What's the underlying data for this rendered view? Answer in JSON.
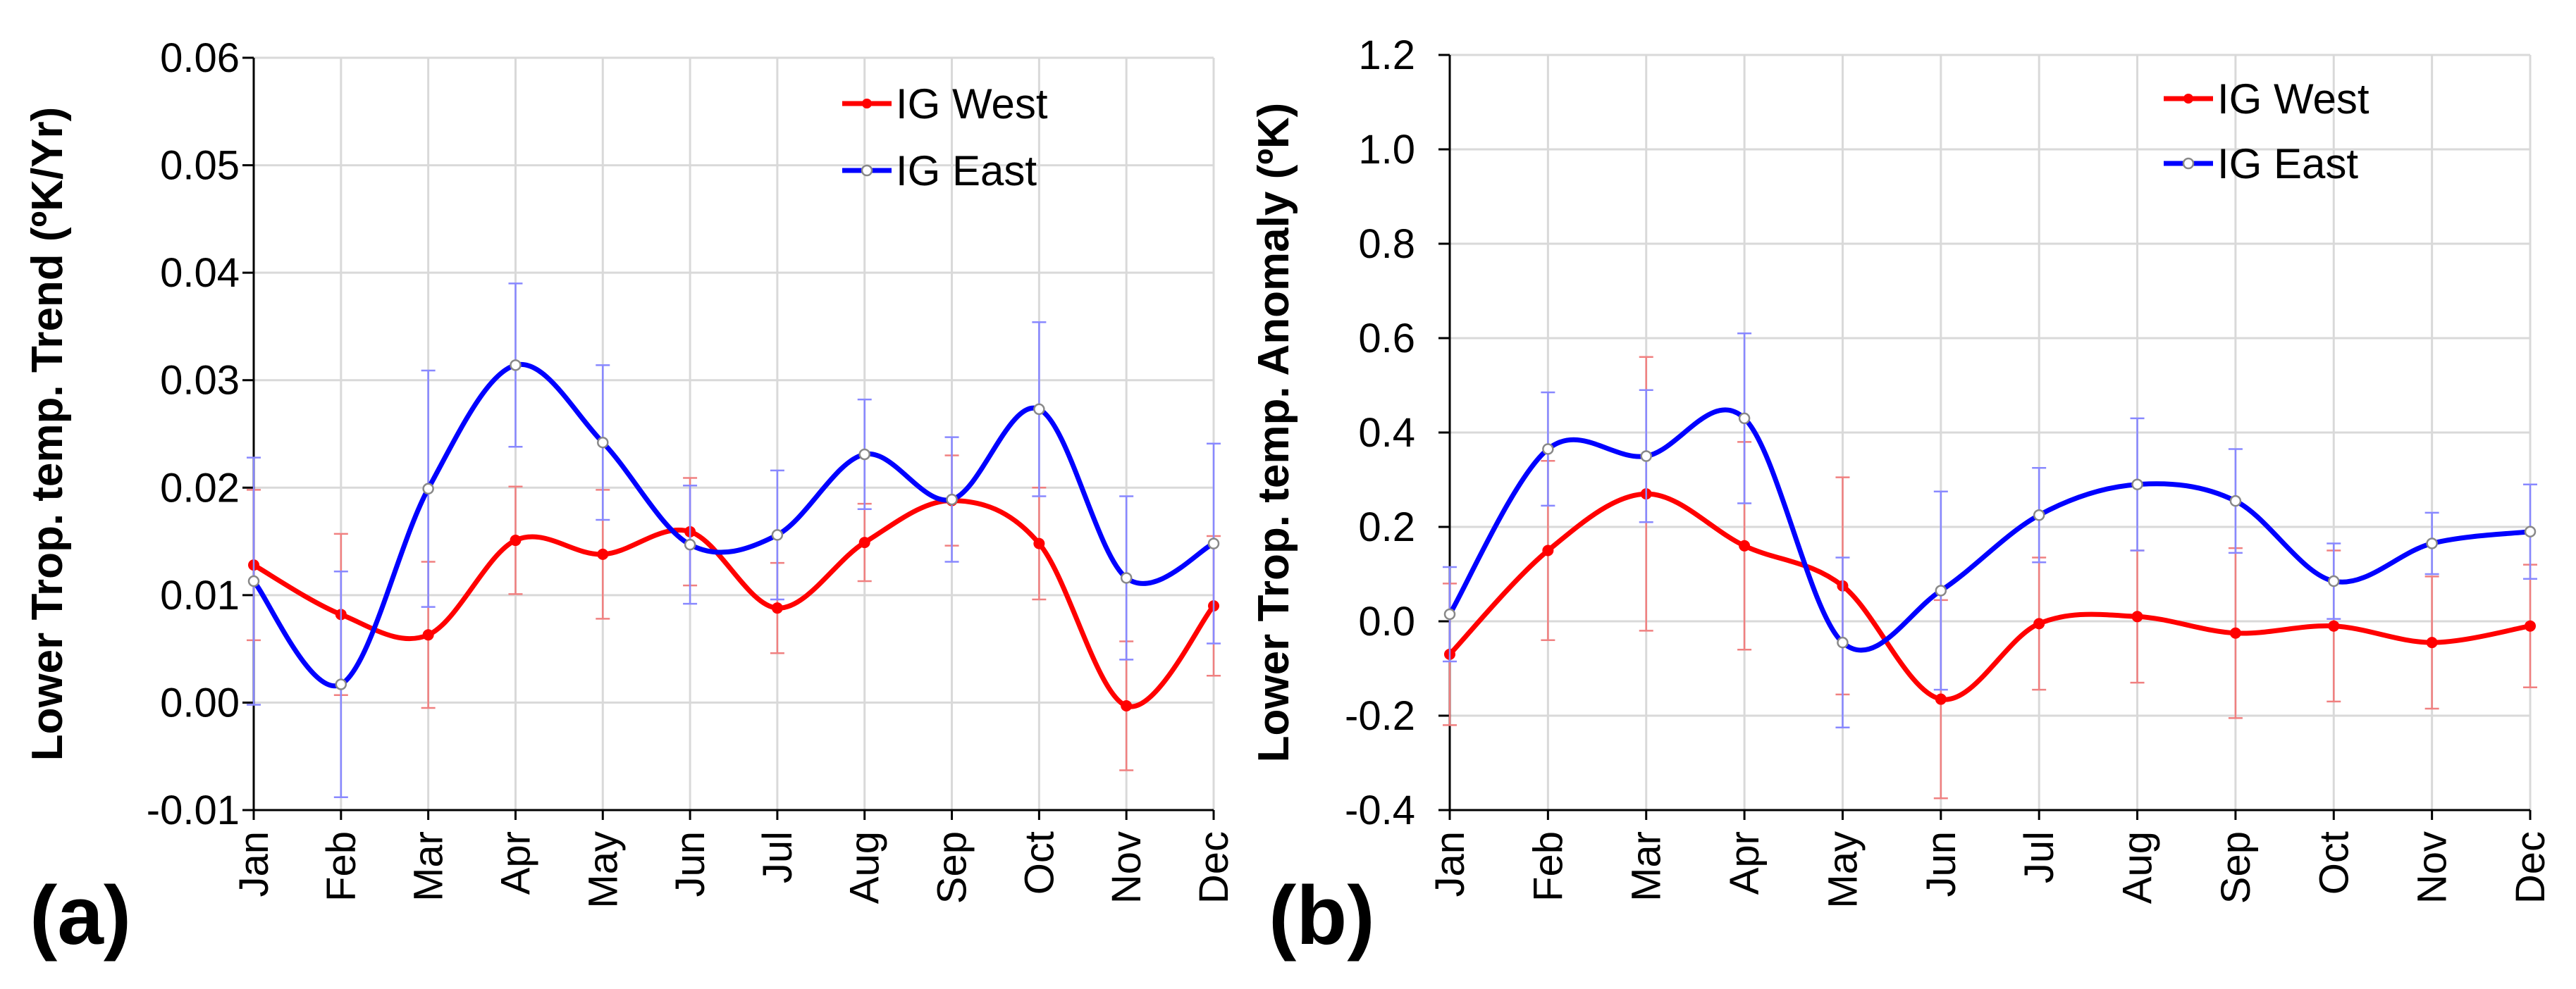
{
  "chart_data": [
    {
      "type": "line",
      "panel_label": "(a)",
      "ylabel": "Lower Trop. temp.  Trend  (ºK/Yr)",
      "xlabel": "",
      "ylim": [
        -0.01,
        0.06
      ],
      "yticks": [
        -0.01,
        0.0,
        0.01,
        0.02,
        0.03,
        0.04,
        0.05,
        0.06
      ],
      "ytick_labels": [
        "-0.01",
        "0.00",
        "0.01",
        "0.02",
        "0.03",
        "0.04",
        "0.05",
        "0.06"
      ],
      "categories": [
        "Jan",
        "Feb",
        "Mar",
        "Apr",
        "May",
        "Jun",
        "Jul",
        "Aug",
        "Sep",
        "Oct",
        "Nov",
        "Dec"
      ],
      "grid": true,
      "legend_position": "top-right",
      "series": [
        {
          "name": "IG West",
          "color": "#ff0000",
          "error_color": "#f08080",
          "marker": "filled",
          "values": [
            0.0128,
            0.0082,
            0.0063,
            0.0151,
            0.0138,
            0.0159,
            0.0088,
            0.0149,
            0.0188,
            0.0148,
            -0.0003,
            0.009
          ],
          "errors": [
            0.007,
            0.0075,
            0.0068,
            0.005,
            0.006,
            0.005,
            0.0042,
            0.0036,
            0.0042,
            0.0052,
            0.006,
            0.0065
          ]
        },
        {
          "name": "IG East",
          "color": "#0000ff",
          "error_color": "#8888ff",
          "marker": "open",
          "values": [
            0.0113,
            0.0017,
            0.0199,
            0.0314,
            0.0242,
            0.0147,
            0.0156,
            0.0231,
            0.0189,
            0.0273,
            0.0116,
            0.0148
          ],
          "errors": [
            0.0115,
            0.0105,
            0.011,
            0.0076,
            0.0072,
            0.0055,
            0.006,
            0.0051,
            0.0058,
            0.0081,
            0.0076,
            0.0093
          ]
        }
      ]
    },
    {
      "type": "line",
      "panel_label": "(b)",
      "ylabel": "Lower Trop. temp. Anomaly (ºK)",
      "xlabel": "",
      "ylim": [
        -0.4,
        1.2
      ],
      "yticks": [
        -0.4,
        -0.2,
        0.0,
        0.2,
        0.4,
        0.6,
        0.8,
        1.0,
        1.2
      ],
      "ytick_labels": [
        "-0.4",
        "-0.2",
        "0.0",
        "0.2",
        "0.4",
        "0.6",
        "0.8",
        "1.0",
        "1.2"
      ],
      "categories": [
        "Jan",
        "Feb",
        "Mar",
        "Apr",
        "May",
        "Jun",
        "Jul",
        "Aug",
        "Sep",
        "Oct",
        "Nov",
        "Dec"
      ],
      "grid": true,
      "legend_position": "top-right",
      "series": [
        {
          "name": "IG West",
          "color": "#ff0000",
          "error_color": "#f08080",
          "marker": "filled",
          "values": [
            -0.07,
            0.15,
            0.27,
            0.16,
            0.075,
            -0.165,
            -0.005,
            0.01,
            -0.025,
            -0.01,
            -0.045,
            -0.01
          ],
          "errors": [
            0.15,
            0.19,
            0.29,
            0.22,
            0.23,
            0.21,
            0.14,
            0.14,
            0.18,
            0.16,
            0.14,
            0.13
          ]
        },
        {
          "name": "IG East",
          "color": "#0000ff",
          "error_color": "#8888ff",
          "marker": "open",
          "values": [
            0.015,
            0.365,
            0.35,
            0.43,
            -0.045,
            0.065,
            0.225,
            0.29,
            0.255,
            0.085,
            0.165,
            0.19
          ],
          "errors": [
            0.1,
            0.12,
            0.14,
            0.18,
            0.18,
            0.21,
            0.1,
            0.14,
            0.11,
            0.08,
            0.065,
            0.1
          ]
        }
      ]
    }
  ]
}
